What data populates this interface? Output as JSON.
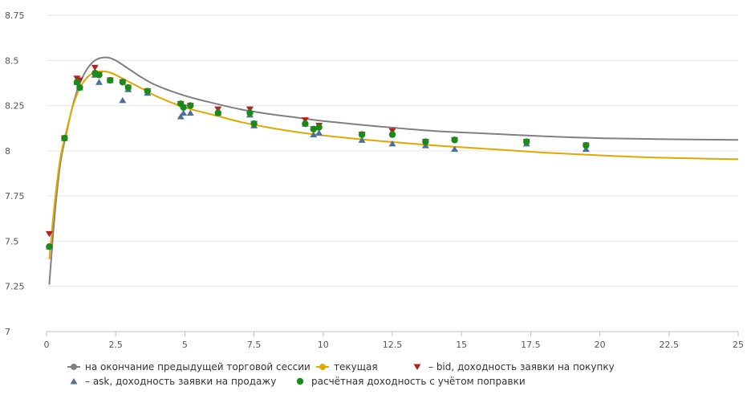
{
  "chart_data": {
    "type": "line",
    "title": "",
    "xlabel": "",
    "ylabel": "",
    "xlim": [
      0,
      25
    ],
    "ylim": [
      7,
      8.75
    ],
    "x_ticks": [
      "0",
      "2.5",
      "5",
      "7.5",
      "10",
      "12.5",
      "15",
      "17.5",
      "20",
      "22.5",
      "25"
    ],
    "y_ticks": [
      "7",
      "7.25",
      "7.5",
      "7.75",
      "8",
      "8.25",
      "8.5",
      "8.75"
    ],
    "grid": "horizontal",
    "legend_position": "bottom",
    "series": [
      {
        "name": "на окончание предыдущей торговой сессии",
        "kind": "line",
        "color": "#808080",
        "points": [
          [
            0.1,
            7.26
          ],
          [
            0.3,
            7.65
          ],
          [
            0.5,
            7.93
          ],
          [
            0.75,
            8.12
          ],
          [
            1.0,
            8.28
          ],
          [
            1.25,
            8.39
          ],
          [
            1.5,
            8.46
          ],
          [
            1.75,
            8.5
          ],
          [
            2.0,
            8.515
          ],
          [
            2.25,
            8.515
          ],
          [
            2.5,
            8.5
          ],
          [
            3.0,
            8.45
          ],
          [
            3.5,
            8.4
          ],
          [
            4.0,
            8.36
          ],
          [
            5.0,
            8.305
          ],
          [
            6.0,
            8.265
          ],
          [
            7.0,
            8.23
          ],
          [
            8.0,
            8.205
          ],
          [
            9.0,
            8.185
          ],
          [
            10.0,
            8.165
          ],
          [
            12.0,
            8.135
          ],
          [
            14.0,
            8.11
          ],
          [
            16.0,
            8.095
          ],
          [
            18.0,
            8.08
          ],
          [
            20.0,
            8.07
          ],
          [
            22.0,
            8.065
          ],
          [
            25.0,
            8.06
          ]
        ]
      },
      {
        "name": "текущая",
        "kind": "line",
        "color": "#e0a800",
        "points": [
          [
            0.1,
            7.4
          ],
          [
            0.3,
            7.72
          ],
          [
            0.5,
            7.96
          ],
          [
            0.75,
            8.13
          ],
          [
            1.0,
            8.27
          ],
          [
            1.25,
            8.36
          ],
          [
            1.5,
            8.41
          ],
          [
            1.75,
            8.435
          ],
          [
            2.0,
            8.44
          ],
          [
            2.25,
            8.435
          ],
          [
            2.5,
            8.42
          ],
          [
            3.0,
            8.38
          ],
          [
            3.5,
            8.34
          ],
          [
            4.0,
            8.3
          ],
          [
            5.0,
            8.24
          ],
          [
            6.0,
            8.2
          ],
          [
            7.0,
            8.16
          ],
          [
            8.0,
            8.13
          ],
          [
            9.0,
            8.105
          ],
          [
            10.0,
            8.085
          ],
          [
            12.0,
            8.055
          ],
          [
            14.0,
            8.03
          ],
          [
            16.0,
            8.01
          ],
          [
            18.0,
            7.99
          ],
          [
            20.0,
            7.975
          ],
          [
            22.0,
            7.963
          ],
          [
            25.0,
            7.953
          ]
        ]
      },
      {
        "name": "– bid, доходность заявки на покупку",
        "kind": "marker",
        "marker": "triangle-down",
        "color": "#b22222",
        "points": [
          [
            0.1,
            7.54
          ],
          [
            0.65,
            8.07
          ],
          [
            1.1,
            8.4
          ],
          [
            1.2,
            8.39
          ],
          [
            1.75,
            8.46
          ],
          [
            1.9,
            8.42
          ],
          [
            2.3,
            8.39
          ],
          [
            2.75,
            8.38
          ],
          [
            2.95,
            8.35
          ],
          [
            3.65,
            8.33
          ],
          [
            4.85,
            8.26
          ],
          [
            4.95,
            8.24
          ],
          [
            5.2,
            8.25
          ],
          [
            6.2,
            8.23
          ],
          [
            7.35,
            8.23
          ],
          [
            7.5,
            8.15
          ],
          [
            9.35,
            8.17
          ],
          [
            9.65,
            8.12
          ],
          [
            9.85,
            8.14
          ],
          [
            11.4,
            8.09
          ],
          [
            12.5,
            8.11
          ],
          [
            13.7,
            8.05
          ],
          [
            14.75,
            8.06
          ],
          [
            17.35,
            8.05
          ],
          [
            19.5,
            8.03
          ]
        ]
      },
      {
        "name": "– ask, доходность заявки на продажу",
        "kind": "marker",
        "marker": "triangle-up",
        "color": "#4f7096",
        "points": [
          [
            0.1,
            7.47
          ],
          [
            0.65,
            8.07
          ],
          [
            1.1,
            8.38
          ],
          [
            1.2,
            8.35
          ],
          [
            1.75,
            8.42
          ],
          [
            1.9,
            8.38
          ],
          [
            2.3,
            8.39
          ],
          [
            2.75,
            8.28
          ],
          [
            2.95,
            8.34
          ],
          [
            3.65,
            8.32
          ],
          [
            4.85,
            8.19
          ],
          [
            4.95,
            8.21
          ],
          [
            5.2,
            8.21
          ],
          [
            6.2,
            8.21
          ],
          [
            7.35,
            8.2
          ],
          [
            7.5,
            8.14
          ],
          [
            9.35,
            8.15
          ],
          [
            9.65,
            8.09
          ],
          [
            9.85,
            8.1
          ],
          [
            11.4,
            8.06
          ],
          [
            12.5,
            8.04
          ],
          [
            13.7,
            8.03
          ],
          [
            14.75,
            8.01
          ],
          [
            17.35,
            8.04
          ],
          [
            19.5,
            8.01
          ]
        ]
      },
      {
        "name": "расчётная доходность с учётом поправки",
        "kind": "marker",
        "marker": "circle",
        "color": "#1a8a1a",
        "points": [
          [
            0.1,
            7.47
          ],
          [
            0.65,
            8.07
          ],
          [
            1.1,
            8.38
          ],
          [
            1.2,
            8.35
          ],
          [
            1.75,
            8.43
          ],
          [
            1.9,
            8.42
          ],
          [
            2.3,
            8.39
          ],
          [
            2.75,
            8.38
          ],
          [
            2.95,
            8.35
          ],
          [
            3.65,
            8.33
          ],
          [
            4.85,
            8.26
          ],
          [
            4.95,
            8.24
          ],
          [
            5.2,
            8.25
          ],
          [
            6.2,
            8.21
          ],
          [
            7.35,
            8.21
          ],
          [
            7.5,
            8.15
          ],
          [
            9.35,
            8.15
          ],
          [
            9.65,
            8.12
          ],
          [
            9.85,
            8.13
          ],
          [
            11.4,
            8.09
          ],
          [
            12.5,
            8.09
          ],
          [
            13.7,
            8.05
          ],
          [
            14.75,
            8.06
          ],
          [
            17.35,
            8.05
          ],
          [
            19.5,
            8.03
          ]
        ]
      }
    ]
  }
}
